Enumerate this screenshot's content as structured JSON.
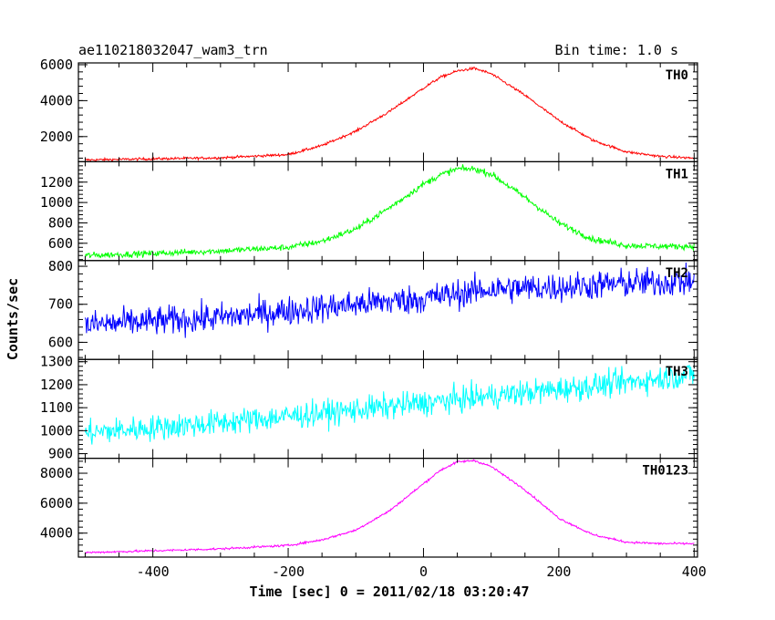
{
  "chart_data": {
    "type": "line",
    "title": "ae110218032047_wam3_trn",
    "subtitle": "Bin time: 1.0 s",
    "xlabel": "Time [sec] 0 = 2011/02/18 03:20:47",
    "ylabel": "Counts/sec",
    "xlim": [
      -510,
      405
    ],
    "xticks": [
      -400,
      -200,
      0,
      200,
      400
    ],
    "grid": false,
    "panels": [
      {
        "name": "TH0",
        "color": "#ff0000",
        "ylim": [
          600,
          6100
        ],
        "yticks": [
          2000,
          4000,
          6000
        ],
        "x": [
          -500,
          -400,
          -300,
          -200,
          -150,
          -100,
          -50,
          0,
          25,
          50,
          75,
          100,
          150,
          200,
          250,
          300,
          350,
          400
        ],
        "y": [
          700,
          760,
          820,
          1000,
          1500,
          2300,
          3400,
          4700,
          5300,
          5650,
          5800,
          5500,
          4300,
          2900,
          1800,
          1150,
          900,
          800
        ],
        "noise": 70
      },
      {
        "name": "TH1",
        "color": "#00ff00",
        "ylim": [
          430,
          1400
        ],
        "yticks": [
          600,
          800,
          1000,
          1200
        ],
        "x": [
          -500,
          -400,
          -300,
          -200,
          -150,
          -100,
          -50,
          0,
          25,
          50,
          75,
          100,
          150,
          200,
          250,
          300,
          350,
          400
        ],
        "y": [
          480,
          500,
          525,
          560,
          620,
          740,
          950,
          1180,
          1270,
          1330,
          1330,
          1280,
          1050,
          800,
          640,
          580,
          570,
          570
        ],
        "noise": 30
      },
      {
        "name": "TH2",
        "color": "#0000ff",
        "ylim": [
          555,
          815
        ],
        "yticks": [
          600,
          700,
          800
        ],
        "x": [
          -500,
          -300,
          -100,
          0,
          100,
          200,
          300,
          400
        ],
        "y": [
          645,
          665,
          700,
          715,
          740,
          745,
          755,
          760
        ],
        "noise": 38
      },
      {
        "name": "TH3",
        "color": "#00ffff",
        "ylim": [
          880,
          1310
        ],
        "yticks": [
          900,
          1000,
          1100,
          1200,
          1300
        ],
        "x": [
          -500,
          -300,
          -100,
          0,
          100,
          200,
          300,
          400
        ],
        "y": [
          990,
          1035,
          1090,
          1120,
          1150,
          1180,
          1210,
          1245
        ],
        "noise": 55
      },
      {
        "name": "TH0123",
        "color": "#ff00ff",
        "ylim": [
          2400,
          9000
        ],
        "yticks": [
          4000,
          6000,
          8000
        ],
        "x": [
          -500,
          -400,
          -300,
          -200,
          -150,
          -100,
          -50,
          0,
          25,
          50,
          75,
          100,
          150,
          200,
          250,
          300,
          350,
          400
        ],
        "y": [
          2700,
          2820,
          2950,
          3180,
          3550,
          4200,
          5500,
          7300,
          8200,
          8750,
          8850,
          8450,
          6900,
          5000,
          3900,
          3400,
          3300,
          3300
        ],
        "noise": 70
      }
    ]
  }
}
